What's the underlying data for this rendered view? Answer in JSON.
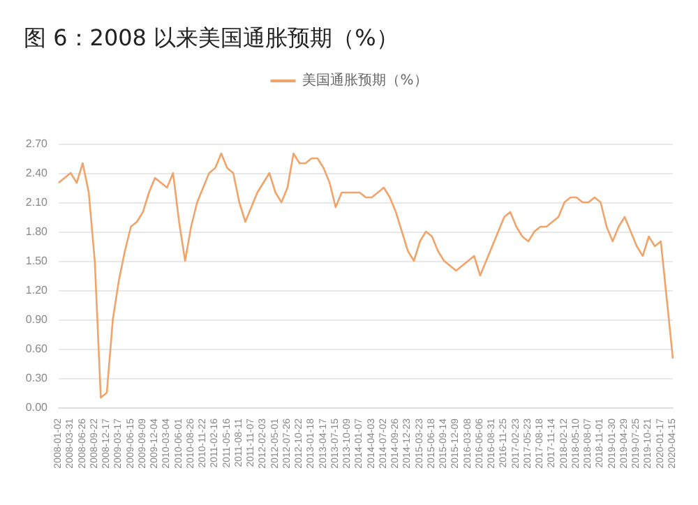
{
  "chart_data": {
    "type": "line",
    "title": "图 6：2008 以来美国通胀预期（%）",
    "categories": [
      "2008-01-02",
      null,
      "2008-03-31",
      null,
      "2008-06-26",
      null,
      "2008-09-22",
      null,
      "2008-12-17",
      null,
      "2009-03-17",
      null,
      "2009-06-15",
      null,
      "2009-09-09",
      null,
      "2009-12-04",
      null,
      "2010-03-04",
      null,
      "2010-06-01",
      null,
      "2010-08-26",
      null,
      "2010-11-22",
      null,
      "2011-02-16",
      null,
      "2011-05-16",
      null,
      "2011-08-11",
      null,
      "2011-11-07",
      null,
      "2012-02-03",
      null,
      "2012-05-01",
      null,
      "2012-07-26",
      null,
      "2012-10-22",
      null,
      "2013-01-18",
      null,
      "2013-04-17",
      null,
      "2013-07-15",
      null,
      "2013-10-09",
      null,
      "2014-01-07",
      null,
      "2014-04-03",
      null,
      "2014-07-02",
      null,
      "2014-09-26",
      null,
      "2014-12-23",
      null,
      "2015-03-23",
      null,
      "2015-06-18",
      null,
      "2015-09-14",
      null,
      "2015-12-09",
      null,
      "2016-03-08",
      null,
      "2016-06-06",
      null,
      "2016-08-31",
      null,
      "2016-11-25",
      null,
      "2017-02-23",
      null,
      "2017-05-23",
      null,
      "2017-08-18",
      null,
      "2017-11-14",
      null,
      "2018-02-12",
      null,
      "2018-05-10",
      null,
      "2018-08-07",
      null,
      "2018-11-01",
      null,
      "2019-01-30",
      null,
      "2019-04-29",
      null,
      "2019-07-25",
      null,
      "2019-10-21",
      null,
      "2020-01-17",
      null,
      "2020-04-15"
    ],
    "series": [
      {
        "name": "美国通胀预期（%）",
        "color": "#f0a46a",
        "values": [
          2.3,
          2.35,
          2.4,
          2.3,
          2.5,
          2.2,
          1.5,
          0.1,
          0.15,
          0.9,
          1.3,
          1.6,
          1.85,
          1.9,
          2.0,
          2.2,
          2.35,
          2.3,
          2.25,
          2.4,
          1.9,
          1.5,
          1.85,
          2.1,
          2.25,
          2.4,
          2.45,
          2.6,
          2.45,
          2.4,
          2.1,
          1.9,
          2.05,
          2.2,
          2.3,
          2.4,
          2.2,
          2.1,
          2.25,
          2.6,
          2.5,
          2.5,
          2.55,
          2.55,
          2.45,
          2.3,
          2.05,
          2.2,
          2.2,
          2.2,
          2.2,
          2.15,
          2.15,
          2.2,
          2.25,
          2.15,
          2.0,
          1.8,
          1.6,
          1.5,
          1.7,
          1.8,
          1.75,
          1.6,
          1.5,
          1.45,
          1.4,
          1.45,
          1.5,
          1.55,
          1.35,
          1.5,
          1.65,
          1.8,
          1.95,
          2.0,
          1.85,
          1.75,
          1.7,
          1.8,
          1.85,
          1.85,
          1.9,
          1.95,
          2.1,
          2.15,
          2.15,
          2.1,
          2.1,
          2.15,
          2.1,
          1.85,
          1.7,
          1.85,
          1.95,
          1.8,
          1.65,
          1.55,
          1.75,
          1.65,
          1.7,
          1.1,
          0.5
        ]
      }
    ],
    "ylim": [
      0,
      2.7
    ],
    "yticks": [
      {
        "value": 0,
        "label": "0.00"
      },
      {
        "value": 0.3,
        "label": "0.30"
      },
      {
        "value": 0.6,
        "label": "0.60"
      },
      {
        "value": 0.9,
        "label": "0.90"
      },
      {
        "value": 1.2,
        "label": "1.20"
      },
      {
        "value": 1.5,
        "label": "1.50"
      },
      {
        "value": 1.8,
        "label": "1.80"
      },
      {
        "value": 2.1,
        "label": "2.10"
      },
      {
        "value": 2.4,
        "label": "2.40"
      },
      {
        "value": 2.7,
        "label": "2.70"
      }
    ],
    "grid": "y",
    "legend": "top",
    "marker": "none",
    "line_style": "solid"
  }
}
